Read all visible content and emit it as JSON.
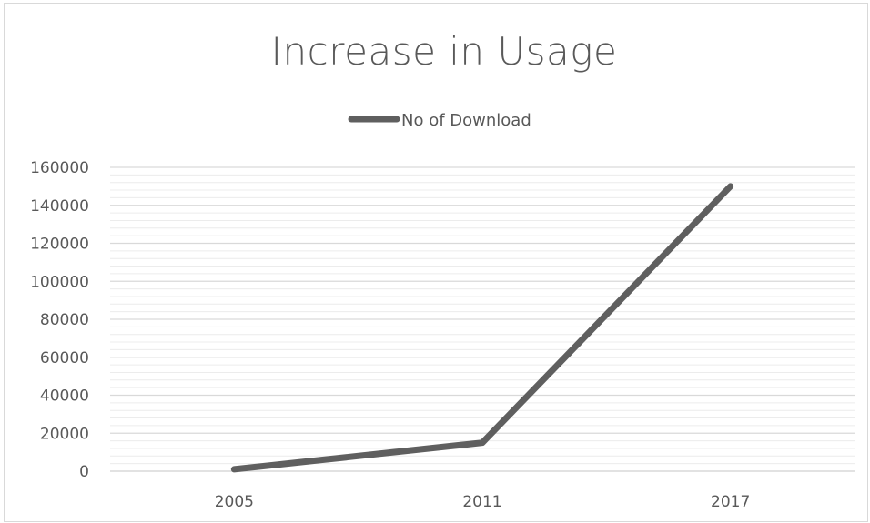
{
  "chart_data": {
    "type": "line",
    "title": "Increase in Usage",
    "categories": [
      "2005",
      "2011",
      "2017"
    ],
    "series": [
      {
        "name": "No of Download",
        "values": [
          1000,
          15000,
          150000
        ],
        "color": "#5f5f5f"
      }
    ],
    "ylim": [
      0,
      160000
    ],
    "yticks": [
      "0",
      "20000",
      "40000",
      "60000",
      "80000",
      "100000",
      "120000",
      "140000",
      "160000"
    ],
    "grid": true,
    "legend_position": "top"
  }
}
